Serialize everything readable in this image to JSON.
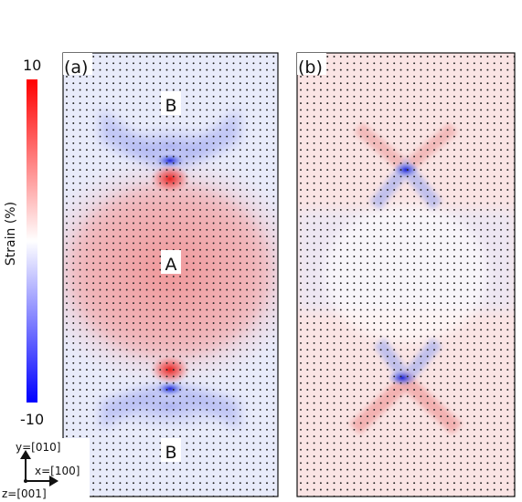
{
  "colorbar": {
    "max_label": "10",
    "min_label": "-10",
    "axis_label": "Strain (%)",
    "colors": {
      "high": "#ff0000",
      "mid": "#ffffff",
      "low": "#0000ff"
    }
  },
  "panels": [
    {
      "label": "(a)",
      "regions": [
        "B",
        "A",
        "B"
      ]
    },
    {
      "label": "(b)",
      "regions": []
    }
  ],
  "axes": {
    "y": "y=[010]",
    "x": "x=[100]",
    "z": "z=[001]"
  }
}
